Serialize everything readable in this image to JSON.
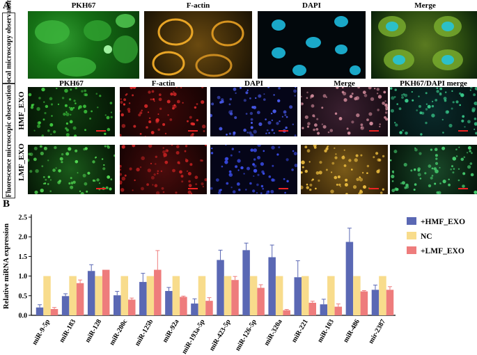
{
  "panel_a": {
    "letter": "A",
    "confocal_side_label": "Confocal microscopy observation",
    "fluorescence_side_label": "Fluorescence microscopic observation",
    "confocal_labels": [
      "PKH67",
      "F-actin",
      "DAPI",
      "Merge"
    ],
    "fluorescence_labels": [
      "PKH67",
      "F-actin",
      "DAPI",
      "Merge",
      "PKH67/DAPI merge"
    ],
    "row_labels": [
      "HMF_EXO",
      "LMF_EXO"
    ]
  },
  "panel_b": {
    "letter": "B"
  },
  "colors": {
    "hmf": "#5a68b4",
    "nc": "#f8dc8c",
    "lmf": "#ee7c7c"
  },
  "chart_data": {
    "type": "bar",
    "ylabel": "Relative miRNA expression",
    "xlabel": "",
    "ylim": [
      0,
      2.5
    ],
    "yticks": [
      "0.0",
      "0.5",
      "1.0",
      "1.5",
      "2.0",
      "2.5"
    ],
    "categories": [
      "miR-9-5p",
      "miR-183",
      "miR-128",
      "miR-200c",
      "miR-125b",
      "miR-92a",
      "miR-193a-5p",
      "miR-423-5p",
      "miR-126-5p",
      "miR-320a",
      "miR-221",
      "miR-103",
      "miR-486",
      "mir-2387"
    ],
    "legend_position": "top-right",
    "series": [
      {
        "name": "+HMF_EXO",
        "color": "#5a68b4",
        "values": [
          0.2,
          0.49,
          1.13,
          0.51,
          0.85,
          0.62,
          0.3,
          1.41,
          1.66,
          1.48,
          0.97,
          0.28,
          1.87,
          0.65
        ],
        "errors": [
          0.07,
          0.06,
          0.16,
          0.1,
          0.22,
          0.09,
          0.12,
          0.25,
          0.18,
          0.31,
          0.42,
          0.13,
          0.35,
          0.12
        ]
      },
      {
        "name": "NC",
        "color": "#f8dc8c",
        "values": [
          1.0,
          1.0,
          1.0,
          1.0,
          1.0,
          1.0,
          1.0,
          1.0,
          1.0,
          1.0,
          1.0,
          1.0,
          1.0,
          1.0
        ],
        "errors": [
          0,
          0,
          0,
          0,
          0,
          0,
          0,
          0,
          0,
          0,
          0,
          0,
          0,
          0
        ]
      },
      {
        "name": "+LMF_EXO",
        "color": "#ee7c7c",
        "values": [
          0.16,
          0.82,
          1.16,
          0.4,
          1.16,
          0.47,
          0.37,
          0.9,
          0.7,
          0.13,
          0.32,
          0.22,
          0.61,
          0.65
        ],
        "errors": [
          0.04,
          0.08,
          0.0,
          0.04,
          0.49,
          0.02,
          0.08,
          0.09,
          0.08,
          0.02,
          0.04,
          0.07,
          0.02,
          0.08
        ]
      }
    ]
  }
}
